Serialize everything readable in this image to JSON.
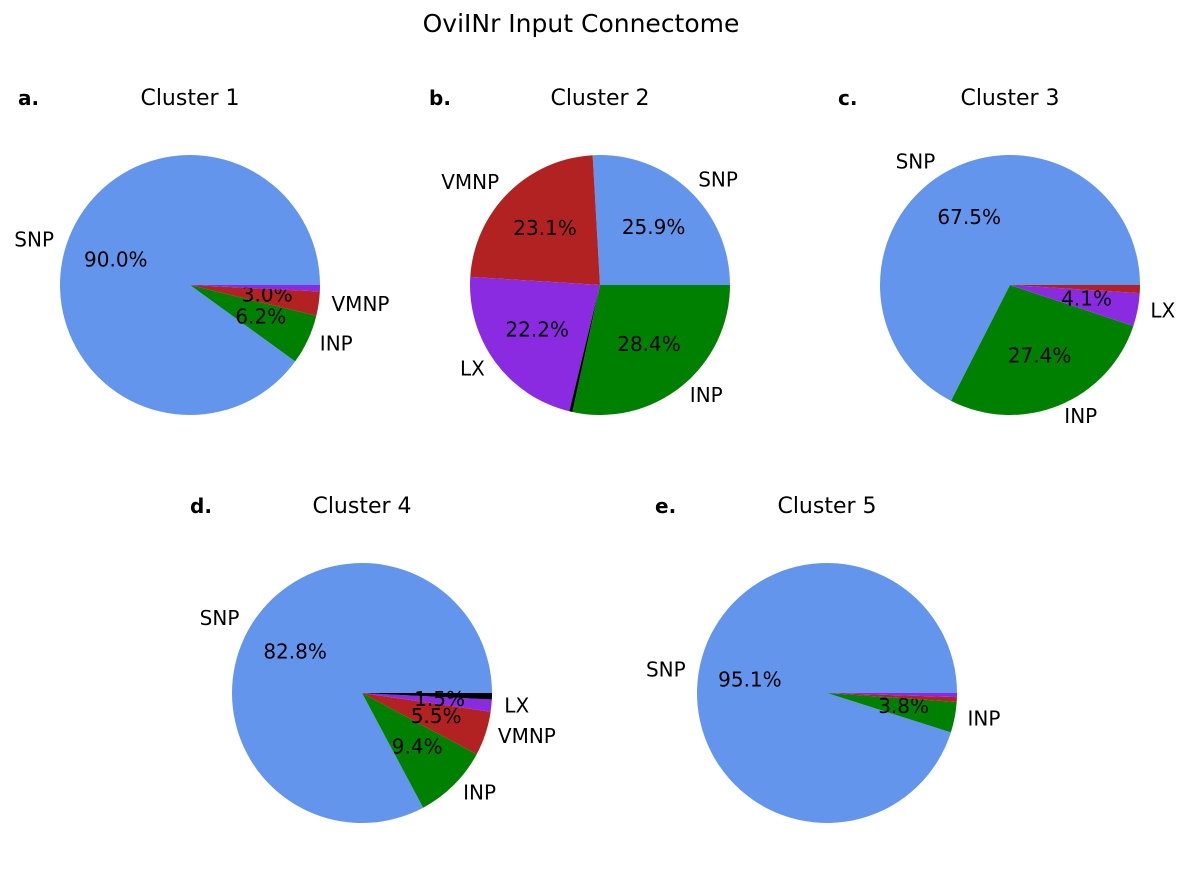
{
  "figure": {
    "title": "OviINr Input Connectome"
  },
  "chart_data": [
    {
      "type": "pie",
      "panel": "a.",
      "title": "Cluster 1",
      "slices": [
        {
          "label": "SNP",
          "value": 90.0,
          "pct_label": "90.0%",
          "show_label": true,
          "color": "#6495ED"
        },
        {
          "label": "INP",
          "value": 6.2,
          "pct_label": "6.2%",
          "show_label": true,
          "color": "#008000"
        },
        {
          "label": "VMNP",
          "value": 3.0,
          "pct_label": "3.0%",
          "show_label": true,
          "color": "#B22222"
        },
        {
          "label": "",
          "value": 0.8,
          "pct_label": "",
          "show_label": false,
          "color": "#8A2BE2"
        }
      ]
    },
    {
      "type": "pie",
      "panel": "b.",
      "title": "Cluster 2",
      "slices": [
        {
          "label": "SNP",
          "value": 25.9,
          "pct_label": "25.9%",
          "show_label": true,
          "color": "#6495ED"
        },
        {
          "label": "VMNP",
          "value": 23.1,
          "pct_label": "23.1%",
          "show_label": true,
          "color": "#B22222"
        },
        {
          "label": "LX",
          "value": 22.2,
          "pct_label": "22.2%",
          "show_label": true,
          "color": "#8A2BE2"
        },
        {
          "label": "",
          "value": 0.4,
          "pct_label": "",
          "show_label": false,
          "color": "#000000"
        },
        {
          "label": "INP",
          "value": 28.4,
          "pct_label": "28.4%",
          "show_label": true,
          "color": "#008000"
        }
      ]
    },
    {
      "type": "pie",
      "panel": "c.",
      "title": "Cluster 3",
      "slices": [
        {
          "label": "SNP",
          "value": 67.5,
          "pct_label": "67.5%",
          "show_label": true,
          "color": "#6495ED"
        },
        {
          "label": "INP",
          "value": 27.4,
          "pct_label": "27.4%",
          "show_label": true,
          "color": "#008000"
        },
        {
          "label": "LX",
          "value": 4.1,
          "pct_label": "4.1%",
          "show_label": true,
          "color": "#8A2BE2"
        },
        {
          "label": "",
          "value": 1.0,
          "pct_label": "",
          "show_label": false,
          "color": "#B22222"
        }
      ]
    },
    {
      "type": "pie",
      "panel": "d.",
      "title": "Cluster 4",
      "slices": [
        {
          "label": "SNP",
          "value": 82.8,
          "pct_label": "82.8%",
          "show_label": true,
          "color": "#6495ED"
        },
        {
          "label": "INP",
          "value": 9.4,
          "pct_label": "9.4%",
          "show_label": true,
          "color": "#008000"
        },
        {
          "label": "VMNP",
          "value": 5.5,
          "pct_label": "5.5%",
          "show_label": true,
          "color": "#B22222"
        },
        {
          "label": "LX",
          "value": 1.5,
          "pct_label": "1.5%",
          "show_label": true,
          "color": "#8A2BE2"
        },
        {
          "label": "",
          "value": 0.8,
          "pct_label": "",
          "show_label": false,
          "color": "#000000"
        }
      ]
    },
    {
      "type": "pie",
      "panel": "e.",
      "title": "Cluster 5",
      "slices": [
        {
          "label": "SNP",
          "value": 95.1,
          "pct_label": "95.1%",
          "show_label": true,
          "color": "#6495ED"
        },
        {
          "label": "INP",
          "value": 3.8,
          "pct_label": "3.8%",
          "show_label": true,
          "color": "#008000"
        },
        {
          "label": "",
          "value": 0.6,
          "pct_label": "",
          "show_label": false,
          "color": "#B22222"
        },
        {
          "label": "",
          "value": 0.5,
          "pct_label": "",
          "show_label": false,
          "color": "#8A2BE2"
        }
      ]
    }
  ]
}
